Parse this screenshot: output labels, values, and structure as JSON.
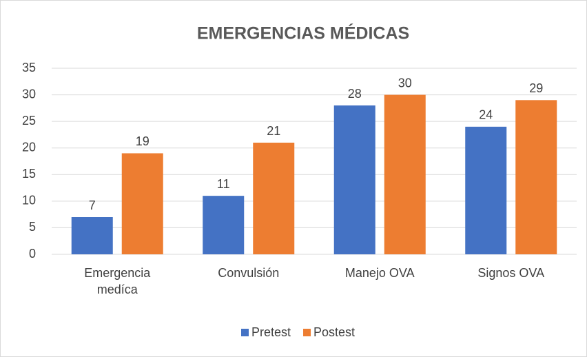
{
  "chart_data": {
    "type": "bar",
    "title": "EMERGENCIAS MÉDICAS",
    "categories": [
      "Emergencia medíca",
      "Convulsión",
      "Manejo OVA",
      "Signos OVA"
    ],
    "series": [
      {
        "name": "Pretest",
        "color": "#4472c4",
        "values": [
          7,
          11,
          28,
          24
        ]
      },
      {
        "name": "Postest",
        "color": "#ed7d31",
        "values": [
          19,
          21,
          30,
          29
        ]
      }
    ],
    "ylim": [
      0,
      35
    ],
    "yticks": [
      0,
      5,
      10,
      15,
      20,
      25,
      30,
      35
    ],
    "grid": true,
    "legend": "bottom"
  }
}
